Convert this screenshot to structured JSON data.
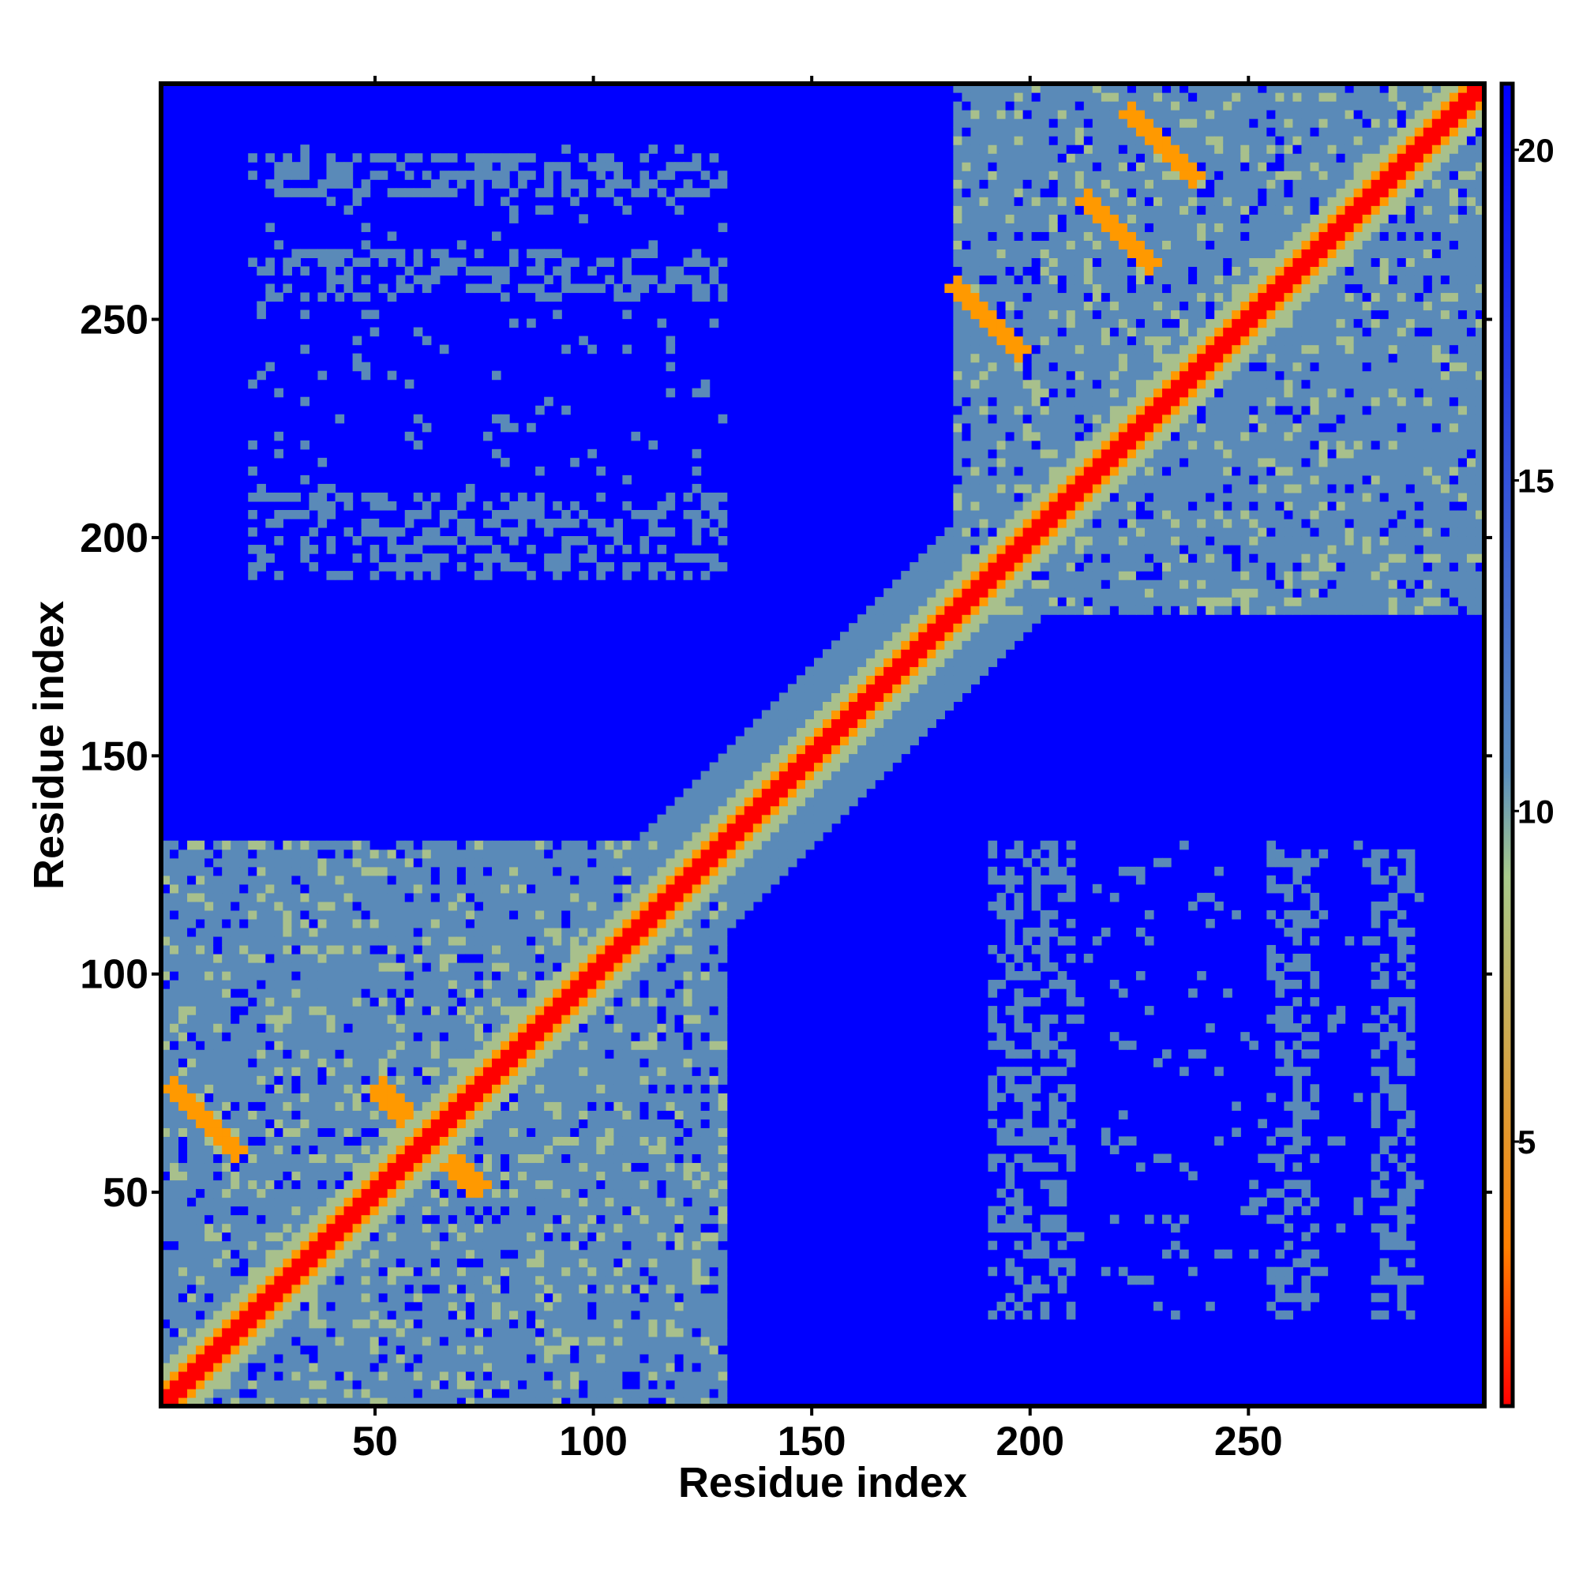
{
  "chart_data": {
    "type": "heatmap",
    "title": "",
    "xlabel": "Residue index",
    "ylabel": "Residue index",
    "xlim": [
      1,
      304
    ],
    "ylim": [
      1,
      304
    ],
    "x_ticks": [
      50,
      100,
      150,
      200,
      250
    ],
    "y_ticks": [
      50,
      100,
      150,
      200,
      250
    ],
    "colorbar": {
      "ticks": [
        5,
        10,
        15,
        20
      ],
      "range": [
        1,
        21
      ],
      "colors": [
        "#ff0000",
        "#ff8000",
        "#a8c98a",
        "#5a8fbf",
        "#0000ff"
      ]
    },
    "colors": {
      "far": "#0000ff",
      "mid": "#5a8ab8",
      "near": "#a8c08c",
      "close": "#ff9900",
      "contact": "#ff0000"
    },
    "domains": [
      {
        "start": 1,
        "end": 130
      },
      {
        "start": 182,
        "end": 304
      }
    ],
    "secondary_contacts": [
      {
        "i": 57,
        "j": 66
      },
      {
        "i": 10,
        "j": 66
      },
      {
        "i": 66,
        "j": 57
      },
      {
        "i": 190,
        "j": 250
      },
      {
        "i": 230,
        "j": 290
      },
      {
        "i": 220,
        "j": 270
      }
    ]
  }
}
